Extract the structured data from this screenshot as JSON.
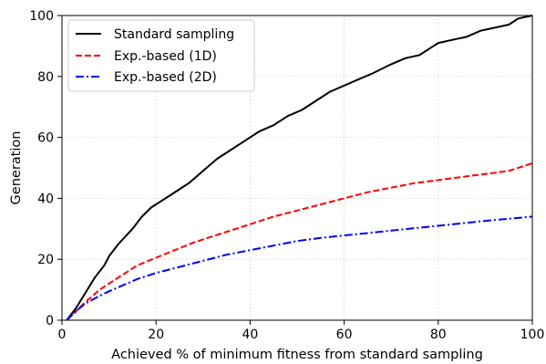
{
  "chart_data": {
    "type": "line",
    "title": "",
    "xlabel": "Achieved % of minimum fitness from standard sampling",
    "ylabel": "Generation",
    "xlim": [
      0,
      100
    ],
    "ylim": [
      0,
      100
    ],
    "xticks": [
      "0",
      "20",
      "40",
      "60",
      "80",
      "100"
    ],
    "yticks": [
      "0",
      "20",
      "40",
      "60",
      "80",
      "100"
    ],
    "grid": true,
    "legend_position": "top-left",
    "series": [
      {
        "name": "Standard sampling",
        "color": "#000000",
        "style": "solid",
        "x": [
          1,
          3,
          5,
          7,
          9,
          10,
          12,
          15,
          17,
          19,
          21,
          23,
          25,
          27,
          30,
          33,
          36,
          39,
          42,
          45,
          48,
          51,
          54,
          57,
          60,
          63,
          66,
          70,
          73,
          76,
          78,
          80,
          83,
          86,
          89,
          92,
          95,
          97,
          100
        ],
        "y": [
          0,
          4,
          9,
          14,
          18,
          21,
          25,
          30,
          34,
          37,
          39,
          41,
          43,
          45,
          49,
          53,
          56,
          59,
          62,
          64,
          67,
          69,
          72,
          75,
          77,
          79,
          81,
          84,
          86,
          87,
          89,
          91,
          92,
          93,
          95,
          96,
          97,
          99,
          100
        ]
      },
      {
        "name": "Exp.-based (1D)",
        "color": "#ff0000",
        "style": "dashed",
        "x": [
          1,
          3,
          5,
          8,
          10,
          13,
          16,
          20,
          24,
          28,
          32,
          36,
          40,
          45,
          50,
          55,
          60,
          65,
          70,
          75,
          80,
          85,
          90,
          95,
          100
        ],
        "y": [
          0,
          3,
          6,
          10,
          12,
          15,
          18,
          20.5,
          23,
          25.5,
          27.5,
          29.5,
          31.5,
          34,
          36,
          38,
          40,
          42,
          43.5,
          45,
          46,
          47,
          48,
          49,
          51.5
        ]
      },
      {
        "name": "Exp.-based (2D)",
        "color": "#0000ff",
        "style": "dashdot",
        "x": [
          1,
          3,
          5,
          8,
          10,
          13,
          16,
          20,
          25,
          30,
          35,
          40,
          45,
          50,
          55,
          60,
          65,
          70,
          75,
          80,
          85,
          90,
          95,
          100
        ],
        "y": [
          0,
          3,
          5.5,
          8,
          9.5,
          11.5,
          13.5,
          15.5,
          17.5,
          19.5,
          21.5,
          23,
          24.5,
          26,
          27,
          27.8,
          28.6,
          29.4,
          30.2,
          31,
          31.8,
          32.6,
          33.3,
          34
        ]
      }
    ]
  }
}
